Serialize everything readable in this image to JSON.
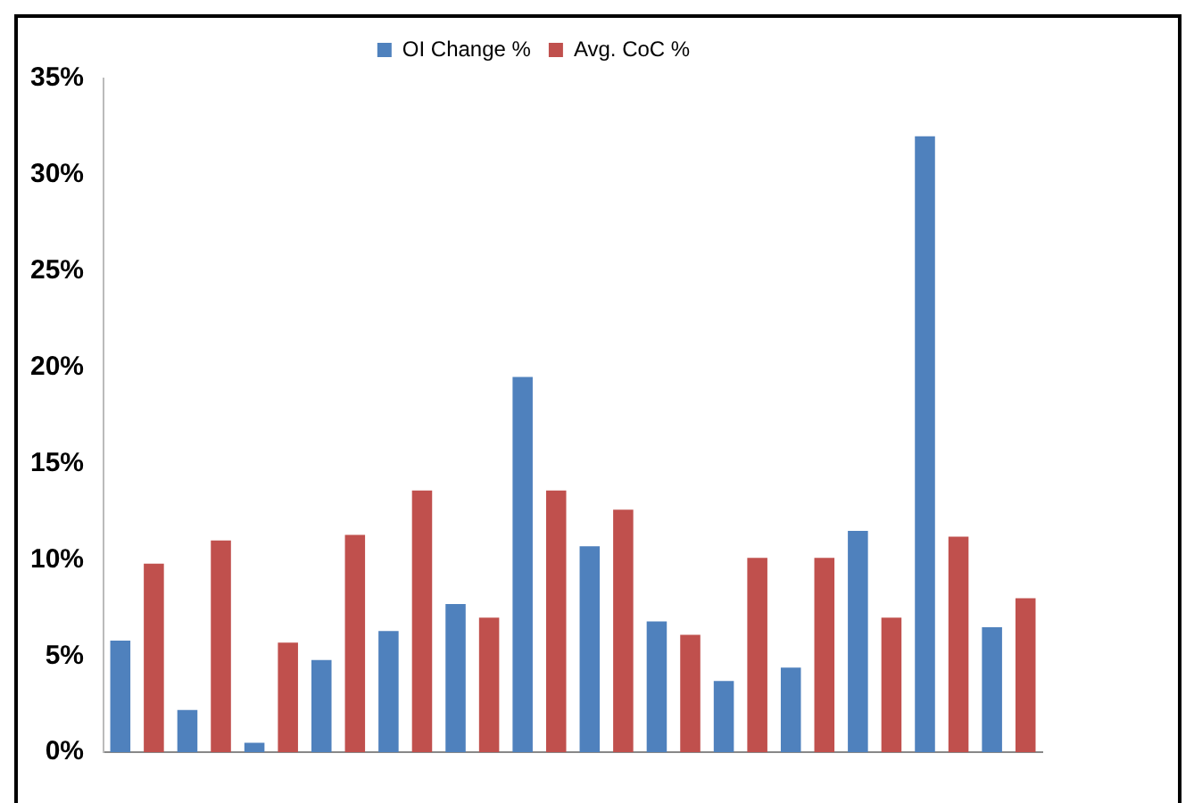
{
  "chart_data": {
    "type": "bar",
    "categories": [
      null,
      null,
      null,
      null,
      null,
      null,
      null,
      null,
      null,
      null,
      null,
      null,
      null,
      null
    ],
    "series": [
      {
        "name": "OI Change %",
        "color": "#4f81bd",
        "values": [
          5.8,
          2.2,
          0.5,
          4.8,
          6.3,
          7.7,
          19.5,
          10.7,
          6.8,
          3.7,
          4.4,
          11.5,
          32,
          6.5
        ]
      },
      {
        "name": "Avg. CoC %",
        "color": "#c0504d",
        "values": [
          9.8,
          11,
          5.7,
          11.3,
          13.6,
          7,
          13.6,
          12.6,
          6.1,
          10.1,
          10.1,
          7,
          11.2,
          8
        ]
      }
    ],
    "ylim": [
      0,
      35
    ],
    "yticks": [
      {
        "value": 0,
        "label": "0%"
      },
      {
        "value": 5,
        "label": "5%"
      },
      {
        "value": 10,
        "label": "10%"
      },
      {
        "value": 15,
        "label": "15%"
      },
      {
        "value": 20,
        "label": "20%"
      },
      {
        "value": 25,
        "label": "25%"
      },
      {
        "value": 30,
        "label": "30%"
      },
      {
        "value": 35,
        "label": "35%"
      }
    ],
    "grid": false,
    "legend": "top"
  }
}
